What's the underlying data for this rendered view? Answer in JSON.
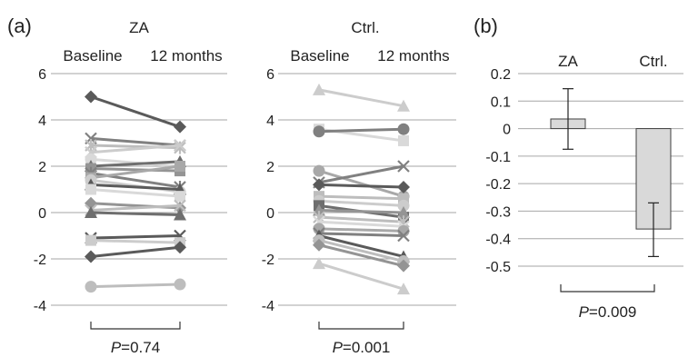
{
  "panel_labels": {
    "a": "(a)",
    "b": "(b)"
  },
  "colors": {
    "grid": "#a6a6a6",
    "axis": "#555555",
    "text": "#222222",
    "series_shades": [
      "#5a5a5a",
      "#6e6e6e",
      "#808080",
      "#949494",
      "#a8a8a8",
      "#bdbdbd",
      "#cccccc",
      "#d9d9d9"
    ],
    "bar_fill": "#d9d9d9",
    "bar_stroke": "#404040"
  },
  "chart_data": [
    {
      "id": "a-za",
      "type": "line",
      "panel": "(a)",
      "title": "ZA",
      "categories": [
        "Baseline",
        "12 months"
      ],
      "ylim": [
        -4,
        6
      ],
      "yticks": [
        -4,
        -2,
        0,
        2,
        4,
        6
      ],
      "grid": true,
      "annotation": {
        "p_label": "P",
        "p_value": "=0.74"
      },
      "series": [
        {
          "values": [
            5.0,
            3.7
          ],
          "marker": "diamond",
          "shade": 0
        },
        {
          "values": [
            3.2,
            2.9
          ],
          "marker": "x",
          "shade": 2
        },
        {
          "values": [
            2.9,
            2.8
          ],
          "marker": "star",
          "shade": 5
        },
        {
          "values": [
            2.6,
            2.9
          ],
          "marker": "x",
          "shade": 6
        },
        {
          "values": [
            2.3,
            2.0
          ],
          "marker": "circle",
          "shade": 7
        },
        {
          "values": [
            2.0,
            2.2
          ],
          "marker": "triangle",
          "shade": 1
        },
        {
          "values": [
            1.9,
            1.8
          ],
          "marker": "square",
          "shade": 3
        },
        {
          "values": [
            1.7,
            1.1
          ],
          "marker": "star",
          "shade": 2
        },
        {
          "values": [
            1.5,
            2.0
          ],
          "marker": "square",
          "shade": 4
        },
        {
          "values": [
            1.4,
            0.9
          ],
          "marker": "circle",
          "shade": 6
        },
        {
          "values": [
            1.2,
            1.0
          ],
          "marker": "triangle",
          "shade": 0
        },
        {
          "values": [
            1.0,
            0.7
          ],
          "marker": "square",
          "shade": 7
        },
        {
          "values": [
            0.4,
            0.2
          ],
          "marker": "diamond",
          "shade": 3
        },
        {
          "values": [
            0.1,
            0.3
          ],
          "marker": "x",
          "shade": 5
        },
        {
          "values": [
            0.0,
            -0.1
          ],
          "marker": "triangle",
          "shade": 1
        },
        {
          "values": [
            -1.1,
            -1.0
          ],
          "marker": "x",
          "shade": 0
        },
        {
          "values": [
            -1.2,
            -1.3
          ],
          "marker": "square",
          "shade": 6
        },
        {
          "values": [
            -1.9,
            -1.5
          ],
          "marker": "diamond",
          "shade": 0
        },
        {
          "values": [
            -3.2,
            -3.1
          ],
          "marker": "circle",
          "shade": 5
        }
      ]
    },
    {
      "id": "a-ctrl",
      "type": "line",
      "panel": "(a)",
      "title": "Ctrl.",
      "categories": [
        "Baseline",
        "12 months"
      ],
      "ylim": [
        -4,
        6
      ],
      "yticks": [
        -4,
        -2,
        0,
        2,
        4,
        6
      ],
      "grid": true,
      "annotation": {
        "p_label": "P",
        "p_value": "=0.001"
      },
      "series": [
        {
          "values": [
            5.3,
            4.6
          ],
          "marker": "triangle",
          "shade": 6
        },
        {
          "values": [
            3.6,
            3.1
          ],
          "marker": "square",
          "shade": 7
        },
        {
          "values": [
            3.5,
            3.6
          ],
          "marker": "circle",
          "shade": 2
        },
        {
          "values": [
            1.8,
            0.7
          ],
          "marker": "circle",
          "shade": 4
        },
        {
          "values": [
            1.3,
            2.0
          ],
          "marker": "x",
          "shade": 2
        },
        {
          "values": [
            1.2,
            1.1
          ],
          "marker": "diamond",
          "shade": 0
        },
        {
          "values": [
            0.7,
            0.6
          ],
          "marker": "square",
          "shade": 5
        },
        {
          "values": [
            0.5,
            0.3
          ],
          "marker": "circle",
          "shade": 6
        },
        {
          "values": [
            0.3,
            -0.2
          ],
          "marker": "square",
          "shade": 1
        },
        {
          "values": [
            0.1,
            0.0
          ],
          "marker": "triangle",
          "shade": 3
        },
        {
          "values": [
            -0.2,
            -0.4
          ],
          "marker": "star",
          "shade": 5
        },
        {
          "values": [
            -0.4,
            -0.6
          ],
          "marker": "x",
          "shade": 7
        },
        {
          "values": [
            -0.7,
            -0.8
          ],
          "marker": "circle",
          "shade": 4
        },
        {
          "values": [
            -0.9,
            -1.0
          ],
          "marker": "x",
          "shade": 2
        },
        {
          "values": [
            -1.0,
            -1.9
          ],
          "marker": "triangle",
          "shade": 0
        },
        {
          "values": [
            -1.2,
            -2.1
          ],
          "marker": "circle",
          "shade": 5
        },
        {
          "values": [
            -1.4,
            -2.3
          ],
          "marker": "diamond",
          "shade": 3
        },
        {
          "values": [
            -2.2,
            -3.3
          ],
          "marker": "triangle",
          "shade": 6
        }
      ]
    },
    {
      "id": "b",
      "type": "bar",
      "panel": "(b)",
      "categories": [
        "ZA",
        "Ctrl."
      ],
      "values": [
        0.035,
        -0.365
      ],
      "error_low": [
        -0.075,
        -0.465
      ],
      "error_high": [
        0.145,
        -0.27
      ],
      "ylim": [
        -0.5,
        0.2
      ],
      "yticks": [
        "0.2",
        "0.1",
        "0",
        "-0.1",
        "-0.2",
        "-0.3",
        "-0.4",
        "-0.5"
      ],
      "grid": true,
      "annotation": {
        "p_label": "P",
        "p_value": "=0.009"
      }
    }
  ]
}
